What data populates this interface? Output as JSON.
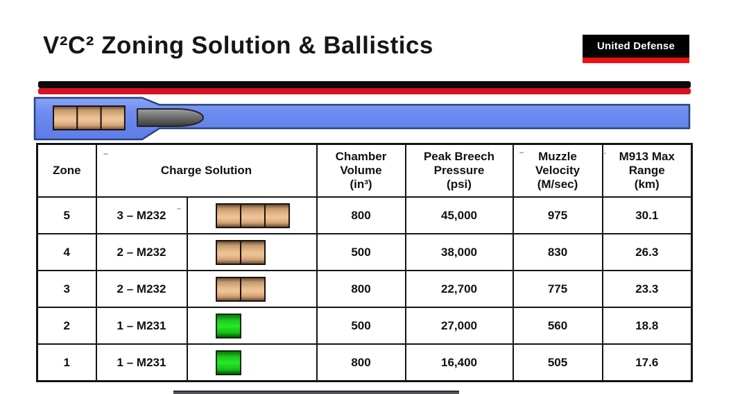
{
  "title": "V²C² Zoning Solution & Ballistics",
  "logo": {
    "text": "United Defense"
  },
  "colors": {
    "logo_bg": "#000000",
    "logo_stripe": "#ee1111",
    "divider_black": "#0a0a0a",
    "divider_red": "#d51323",
    "barrel_blue": "#6d8cf0",
    "barrel_border": "#27427e",
    "charge_tan": "#e8bd8e",
    "charge_green": "#27e827",
    "projectile_grey": "#6e6e6e"
  },
  "table": {
    "headers": {
      "zone": "Zone",
      "charge": "Charge Solution",
      "chamber": "Chamber\nVolume\n(in³)",
      "pressure": "Peak Breech\nPressure\n(psi)",
      "velocity": "Muzzle\nVelocity\n(M/sec)",
      "range": "M913 Max\nRange\n(km)"
    },
    "rows": [
      {
        "zone": "5",
        "charge": "3 – M232",
        "units": 3,
        "box": "tan",
        "chamber": "800",
        "pressure": "45,000",
        "velocity": "975",
        "range": "30.1"
      },
      {
        "zone": "4",
        "charge": "2 – M232",
        "units": 2,
        "box": "tan",
        "chamber": "500",
        "pressure": "38,000",
        "velocity": "830",
        "range": "26.3"
      },
      {
        "zone": "3",
        "charge": "2 – M232",
        "units": 2,
        "box": "tan",
        "chamber": "800",
        "pressure": "22,700",
        "velocity": "775",
        "range": "23.3"
      },
      {
        "zone": "2",
        "charge": "1 – M231",
        "units": 1,
        "box": "green",
        "chamber": "500",
        "pressure": "27,000",
        "velocity": "560",
        "range": "18.8"
      },
      {
        "zone": "1",
        "charge": "1 – M231",
        "units": 1,
        "box": "green",
        "chamber": "800",
        "pressure": "16,400",
        "velocity": "505",
        "range": "17.6"
      }
    ]
  }
}
